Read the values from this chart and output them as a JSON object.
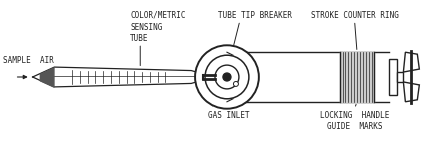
{
  "bg_color": "#ffffff",
  "line_color": "#222222",
  "labels": {
    "sample_air": "SAMPLE  AIR",
    "colorimetric": "COLOR/METRIC\nSENSING\nTUBE",
    "tube_tip": "TUBE TIP BREAKER",
    "stroke_counter": "STROKE COUNTER RING",
    "gas_inlet": "GAS INLET",
    "locking_handle": "LOCKING  HANDLE\nGUIDE  MARKS"
  },
  "fontsize": 5.5,
  "lw": 1.0
}
